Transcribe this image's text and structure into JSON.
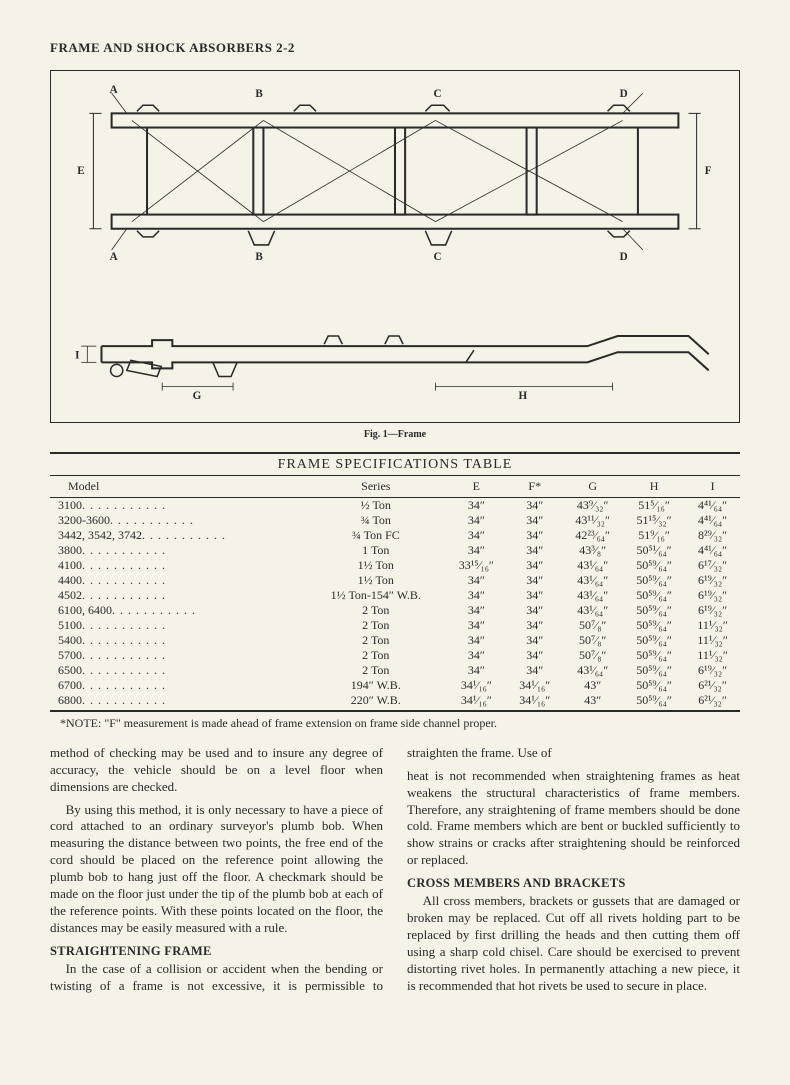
{
  "header": "FRAME AND SHOCK ABSORBERS 2-2",
  "figure": {
    "caption": "Fig. 1—Frame",
    "labels": {
      "A": "A",
      "B": "B",
      "C": "C",
      "D": "D",
      "E": "E",
      "F": "F",
      "G": "G",
      "H": "H",
      "I": "I"
    },
    "style": {
      "stroke": "#2a2a2a",
      "stroke_width_frame": 2,
      "stroke_width_lines": 1,
      "background": "#f5f2e8"
    }
  },
  "table": {
    "title": "FRAME SPECIFICATIONS TABLE",
    "columns": [
      "Model",
      "Series",
      "E",
      "F*",
      "G",
      "H",
      "I"
    ],
    "rows": [
      {
        "model": "3100",
        "series": "½ Ton",
        "E": "34″",
        "F": "34″",
        "G": "43⁹⁄₃₂″",
        "H": "51⁵⁄₁₆″",
        "I": "4⁴¹⁄₆₄″"
      },
      {
        "model": "3200-3600",
        "series": "¾ Ton",
        "E": "34″",
        "F": "34″",
        "G": "43¹¹⁄₃₂″",
        "H": "51¹⁵⁄₃₂″",
        "I": "4⁴¹⁄₆₄″"
      },
      {
        "model": "3442, 3542, 3742",
        "series": "¾ Ton FC",
        "E": "34″",
        "F": "34″",
        "G": "42²³⁄₆₄″",
        "H": "51⁹⁄₁₆″",
        "I": "8²⁹⁄₃₂″"
      },
      {
        "model": "3800",
        "series": "1 Ton",
        "E": "34″",
        "F": "34″",
        "G": "43³⁄₈″",
        "H": "50⁵¹⁄₆₄″",
        "I": "4⁴¹⁄₆₄″"
      },
      {
        "model": "4100",
        "series": "1½ Ton",
        "E": "33¹⁵⁄₁₆″",
        "F": "34″",
        "G": "43¹⁄₆₄″",
        "H": "50⁵⁹⁄₆₄″",
        "I": "6¹⁷⁄₃₂″"
      },
      {
        "model": "4400",
        "series": "1½ Ton",
        "E": "34″",
        "F": "34″",
        "G": "43¹⁄₆₄″",
        "H": "50⁵⁹⁄₆₄″",
        "I": "6¹⁹⁄₃₂″"
      },
      {
        "model": "4502",
        "series": "1½ Ton-154″ W.B.",
        "E": "34″",
        "F": "34″",
        "G": "43¹⁄₆₄″",
        "H": "50⁵⁹⁄₆₄″",
        "I": "6¹⁹⁄₃₂″"
      },
      {
        "model": "6100, 6400",
        "series": "2 Ton",
        "E": "34″",
        "F": "34″",
        "G": "43¹⁄₆₄″",
        "H": "50⁵⁹⁄₆₄″",
        "I": "6¹⁹⁄₃₂″"
      },
      {
        "model": "5100",
        "series": "2 Ton",
        "E": "34″",
        "F": "34″",
        "G": "50⁷⁄₈″",
        "H": "50⁵⁹⁄₆₄″",
        "I": "11¹⁄₃₂″"
      },
      {
        "model": "5400",
        "series": "2 Ton",
        "E": "34″",
        "F": "34″",
        "G": "50⁷⁄₈″",
        "H": "50⁵⁹⁄₆₄″",
        "I": "11¹⁄₃₂″"
      },
      {
        "model": "5700",
        "series": "2 Ton",
        "E": "34″",
        "F": "34″",
        "G": "50⁷⁄₈″",
        "H": "50⁵⁹⁄₆₄″",
        "I": "11¹⁄₃₂″"
      },
      {
        "model": "6500",
        "series": "2 Ton",
        "E": "34″",
        "F": "34″",
        "G": "43¹⁄₆₄″",
        "H": "50⁵⁹⁄₆₄″",
        "I": "6¹⁹⁄₃₂″"
      },
      {
        "model": "6700",
        "series": "194″ W.B.",
        "E": "34¹⁄₁₆″",
        "F": "34¹⁄₁₆″",
        "G": "43″",
        "H": "50⁵⁹⁄₆₄″",
        "I": "6²¹⁄₃₂″"
      },
      {
        "model": "6800",
        "series": "220″ W.B.",
        "E": "34¹⁄₁₆″",
        "F": "34¹⁄₁₆″",
        "G": "43″",
        "H": "50⁵⁹⁄₆₄″",
        "I": "6²¹⁄₃₂″"
      }
    ],
    "note": "*NOTE: \"F\" measurement is made ahead of frame extension on frame side channel proper."
  },
  "body": {
    "p1": "method of checking may be used and to insure any degree of accuracy, the vehicle should be on a level floor when dimensions are checked.",
    "p2": "By using this method, it is only necessary to have a piece of cord attached to an ordinary surveyor's plumb bob. When measuring the distance between two points, the free end of the cord should be placed on the reference point allowing the plumb bob to hang just off the floor. A checkmark should be made on the floor just under the tip of the plumb bob at each of the reference points. With these points located on the floor, the distances may be easily measured with a rule.",
    "h1": "STRAIGHTENING FRAME",
    "p3": "In the case of a collision or accident when the bending or twisting of a frame is not excessive, it is permissible to straighten the frame. Use of",
    "p4": "heat is not recommended when straightening frames as heat weakens the structural characteristics of frame members. Therefore, any straightening of frame members should be done cold. Frame members which are bent or buckled sufficiently to show strains or cracks after straightening should be reinforced or replaced.",
    "h2": "CROSS MEMBERS AND BRACKETS",
    "p5": "All cross members, brackets or gussets that are damaged or broken may be replaced. Cut off all rivets holding part to be replaced by first drilling the heads and then cutting them off using a sharp cold chisel. Care should be exercised to prevent distorting rivet holes. In permanently attaching a new piece, it is recommended that hot rivets be used to secure in place."
  }
}
